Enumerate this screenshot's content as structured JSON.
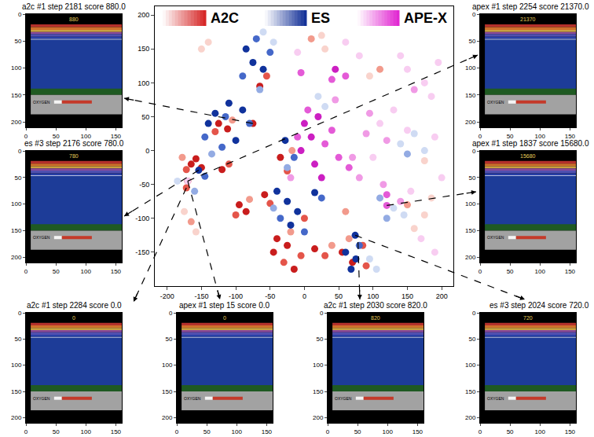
{
  "chart_data": {
    "type": "scatter",
    "xlim": [
      -218,
      217
    ],
    "ylim": [
      -200,
      213
    ],
    "xticks": [
      -200,
      -150,
      -100,
      -50,
      0,
      50,
      100,
      150,
      200
    ],
    "yticks": [
      -150,
      -100,
      -50,
      0,
      50,
      100,
      150,
      200
    ],
    "grid": false,
    "legend": "top",
    "series": [
      {
        "name": "A2C",
        "color": "#d42020",
        "x": [
          -165,
          -158,
          -172,
          -150,
          -178,
          -125,
          -112,
          -130,
          -105,
          -120,
          -110,
          -95,
          -85,
          -100,
          -80,
          -58,
          -50,
          -40,
          -25,
          -45,
          -30,
          -15,
          -5,
          -20,
          15,
          30,
          40,
          55,
          70,
          85,
          65,
          90,
          -35,
          -25,
          -18,
          -65,
          -55,
          10,
          30,
          25,
          110,
          95,
          150,
          175,
          160,
          185,
          -165,
          -158,
          -175,
          -150,
          -140,
          175,
          60,
          0,
          -75,
          -172,
          -170
        ],
        "y": [
          -20,
          -12,
          -28,
          -25,
          -10,
          40,
          32,
          28,
          45,
          -28,
          -20,
          -80,
          -90,
          -95,
          -72,
          -65,
          -78,
          -130,
          -140,
          -150,
          -165,
          -175,
          -155,
          -120,
          -145,
          -155,
          -140,
          -150,
          -165,
          -140,
          -130,
          -170,
          -10,
          -30,
          0,
          95,
          110,
          165,
          150,
          170,
          120,
          110,
          -80,
          -95,
          -115,
          -70,
          -105,
          -120,
          -90,
          150,
          160,
          -15,
          -90,
          -100,
          40,
          -55,
          -45
        ],
        "colors": [
          "#c91d1d",
          "#c91d1d",
          "#e4554a",
          "#c91d1d",
          "#f29a8c",
          "#c91d1d",
          "#c91d1d",
          "#e4554a",
          "#f29a8c",
          "#c91d1d",
          "#e4554a",
          "#c91d1d",
          "#c91d1d",
          "#e4554a",
          "#f29a8c",
          "#c91d1d",
          "#e4554a",
          "#c91d1d",
          "#c91d1d",
          "#c91d1d",
          "#e4554a",
          "#c91d1d",
          "#e4554a",
          "#f29a8c",
          "#c91d1d",
          "#e4554a",
          "#f29a8c",
          "#c91d1d",
          "#c91d1d",
          "#e4554a",
          "#f29a8c",
          "#e4554a",
          "#c91d1d",
          "#e4554a",
          "#f29a8c",
          "#c91d1d",
          "#e4554a",
          "#f29a8c",
          "#f9d3cc",
          "#f9d3cc",
          "#f29a8c",
          "#f9d3cc",
          "#f29a8c",
          "#f9d3cc",
          "#f9d3cc",
          "#f9d3cc",
          "#f29a8c",
          "#f9d3cc",
          "#f9d3cc",
          "#f9d3cc",
          "#f9d3cc",
          "#f9d3cc",
          "#f29a8c",
          "#e4554a",
          "#c91d1d",
          "#e4554a",
          "#c91d1d"
        ]
      },
      {
        "name": "ES",
        "color": "#0c2a94",
        "x": [
          -140,
          -130,
          -115,
          -145,
          -100,
          -90,
          -120,
          -135,
          -80,
          -85,
          -70,
          -75,
          -60,
          -65,
          -50,
          -90,
          -40,
          -25,
          -10,
          -35,
          -20,
          0,
          -45,
          15,
          25,
          60,
          75,
          80,
          68,
          -28,
          -15,
          -25,
          110,
          130,
          145,
          120,
          95,
          105,
          140,
          160,
          175,
          150,
          -60,
          -45,
          20,
          30,
          -160,
          -185,
          -154,
          -145,
          74,
          -110
        ],
        "y": [
          40,
          55,
          50,
          20,
          15,
          60,
          5,
          -5,
          40,
          150,
          165,
          130,
          120,
          90,
          145,
          110,
          -60,
          -75,
          -90,
          -100,
          -110,
          -120,
          -85,
          -62,
          -70,
          -150,
          -160,
          -140,
          -175,
          15,
          -10,
          -25,
          -70,
          -85,
          -95,
          -100,
          -160,
          -175,
          10,
          25,
          0,
          -5,
          175,
          160,
          80,
          65,
          -60,
          -45,
          -29,
          -38,
          -125,
          70
        ],
        "colors": [
          "#10329c",
          "#10329c",
          "#4568c9",
          "#4568c9",
          "#10329c",
          "#10329c",
          "#4568c9",
          "#93abe3",
          "#4568c9",
          "#10329c",
          "#4568c9",
          "#10329c",
          "#10329c",
          "#93abe3",
          "#4568c9",
          "#4568c9",
          "#10329c",
          "#10329c",
          "#10329c",
          "#4568c9",
          "#10329c",
          "#4568c9",
          "#93abe3",
          "#10329c",
          "#4568c9",
          "#10329c",
          "#10329c",
          "#4568c9",
          "#10329c",
          "#10329c",
          "#4568c9",
          "#93abe3",
          "#93abe3",
          "#cfdbf3",
          "#cfdbf3",
          "#93abe3",
          "#cfdbf3",
          "#cfdbf3",
          "#cfdbf3",
          "#cfdbf3",
          "#cfdbf3",
          "#93abe3",
          "#cfdbf3",
          "#cfdbf3",
          "#cfdbf3",
          "#cfdbf3",
          "#93abe3",
          "#cfdbf3",
          "#10329c",
          "#4568c9",
          "#10329c",
          "#10329c"
        ]
      },
      {
        "name": "APE-X",
        "color": "#e020d0",
        "x": [
          0,
          10,
          20,
          -5,
          15,
          30,
          25,
          40,
          5,
          50,
          -10,
          45,
          60,
          40,
          -5,
          95,
          110,
          130,
          150,
          120,
          90,
          150,
          175,
          195,
          160,
          185,
          140,
          120,
          140,
          115,
          155,
          65,
          80,
          70,
          -20,
          45,
          80,
          100,
          190,
          200,
          -10,
          60,
          170,
          190,
          120,
          -170
        ],
        "y": [
          40,
          20,
          50,
          0,
          -20,
          10,
          -40,
          30,
          60,
          -10,
          20,
          120,
          110,
          105,
          115,
          55,
          40,
          60,
          30,
          15,
          25,
          120,
          100,
          130,
          90,
          80,
          140,
          -65,
          -75,
          -50,
          -60,
          -25,
          -40,
          -10,
          -40,
          75,
          140,
          -10,
          20,
          -40,
          145,
          160,
          -130,
          -150,
          -81,
          -45
        ],
        "colors": [
          "#cc1fc2",
          "#cc1fc2",
          "#cc1fc2",
          "#cc1fc2",
          "#cc1fc2",
          "#e45ad7",
          "#cc1fc2",
          "#e45ad7",
          "#e45ad7",
          "#e45ad7",
          "#e45ad7",
          "#cc1fc2",
          "#e45ad7",
          "#e45ad7",
          "#e45ad7",
          "#f09ae5",
          "#f8cdf1",
          "#f8cdf1",
          "#f8cdf1",
          "#f09ae5",
          "#f09ae5",
          "#f8cdf1",
          "#f8cdf1",
          "#f8cdf1",
          "#f09ae5",
          "#f8cdf1",
          "#f8cdf1",
          "#e45ad7",
          "#f09ae5",
          "#f09ae5",
          "#f8cdf1",
          "#e45ad7",
          "#f09ae5",
          "#f09ae5",
          "#f09ae5",
          "#f09ae5",
          "#f8cdf1",
          "#f8cdf1",
          "#f8cdf1",
          "#f8cdf1",
          "#f8cdf1",
          "#f8cdf1",
          "#f8cdf1",
          "#f8cdf1",
          "#e45ad7",
          "#f8cdf1"
        ]
      }
    ]
  },
  "panel_xlim": [
    0,
    160
  ],
  "panel_ylim": [
    210,
    0
  ],
  "panel_xticks": [
    0,
    50,
    100,
    150
  ],
  "panel_yticks": [
    0,
    50,
    100,
    150,
    200
  ],
  "screen_label": "OXYGEN",
  "panels": [
    {
      "title": "a2c #1 step 2181 score 880.0",
      "screen_text": "880",
      "points_to": [
        -75,
        40
      ]
    },
    {
      "title": "es #3 step 2176 score 780.0",
      "screen_text": "780",
      "points_to": [
        -154,
        -29
      ]
    },
    {
      "title": "a2c #1 step 2284 score 0.0",
      "screen_text": "0",
      "points_to": [
        -172,
        -55
      ]
    },
    {
      "title": "apex #1 step 15 score 0.0",
      "screen_text": "0",
      "points_to": [
        -170,
        -45
      ]
    },
    {
      "title": "a2c #1 step 2030 score 820.0",
      "screen_text": "820",
      "points_to": [
        78,
        -135
      ]
    },
    {
      "title": "es #3 step 2024 score 720.0",
      "screen_text": "720",
      "points_to": [
        74,
        -125
      ]
    },
    {
      "title": "apex #1 step 2254 score 21370.0",
      "screen_text": "21370",
      "points_to": [
        -170,
        -45
      ]
    },
    {
      "title": "apex #1 step 1837 score 15680.0",
      "screen_text": "15680",
      "points_to": [
        120,
        -81
      ]
    }
  ]
}
